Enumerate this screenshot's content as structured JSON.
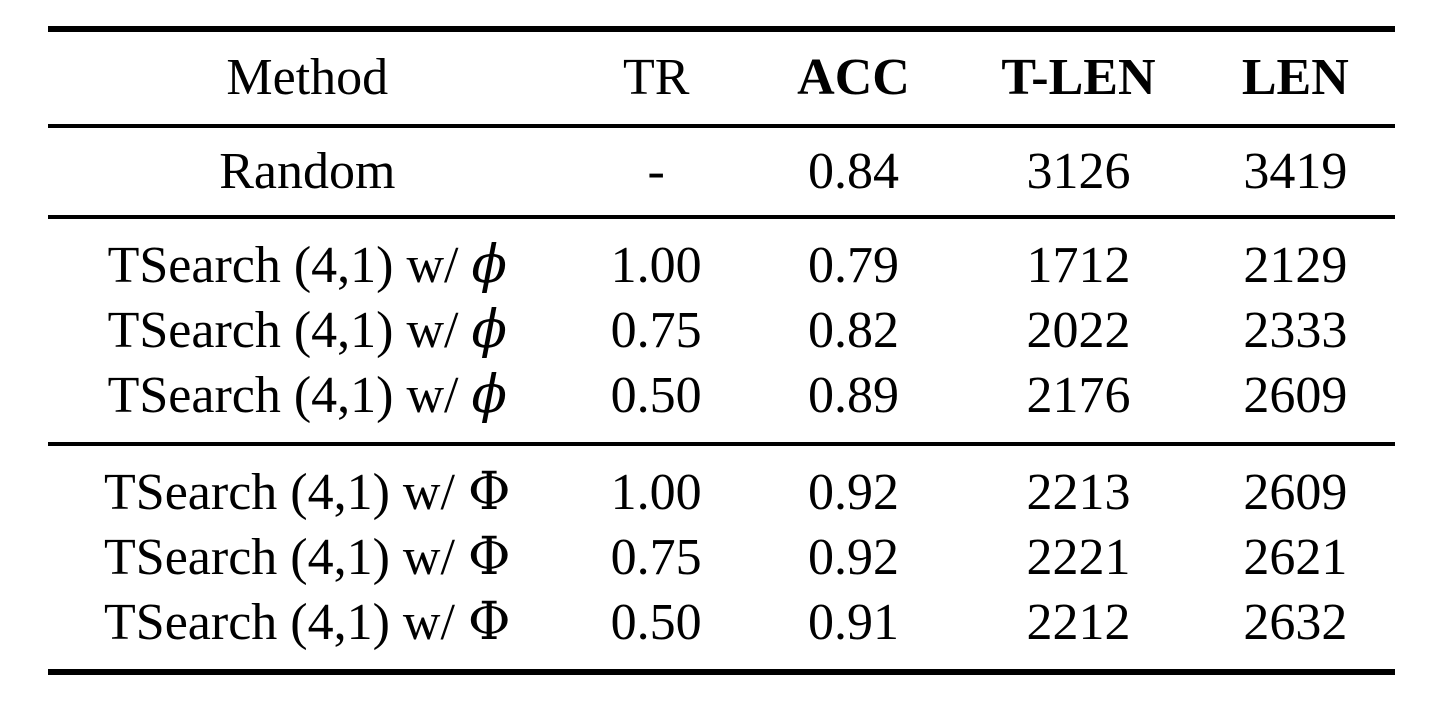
{
  "page": {
    "background_color": "#ffffff",
    "text_color": "#000000"
  },
  "table": {
    "columns": [
      {
        "key": "method",
        "label": "Method",
        "bold": false
      },
      {
        "key": "tr",
        "label": "TR",
        "bold": false
      },
      {
        "key": "acc",
        "label": "ACC",
        "bold": true
      },
      {
        "key": "t_len",
        "label": "T-LEN",
        "bold": true
      },
      {
        "key": "len",
        "label": "LEN",
        "bold": true
      }
    ],
    "groups": [
      {
        "name": "baseline",
        "rows": [
          {
            "method_prefix": "Random",
            "method_symbol": "",
            "tr": "-",
            "acc": "0.84",
            "t_len": "3126",
            "len": "3419"
          }
        ]
      },
      {
        "name": "tsearch-lowercase-phi",
        "rows": [
          {
            "method_prefix": "TSearch (4,1) w/",
            "method_symbol": "ϕ",
            "tr": "1.00",
            "acc": "0.79",
            "t_len": "1712",
            "len": "2129"
          },
          {
            "method_prefix": "TSearch (4,1) w/",
            "method_symbol": "ϕ",
            "tr": "0.75",
            "acc": "0.82",
            "t_len": "2022",
            "len": "2333"
          },
          {
            "method_prefix": "TSearch (4,1) w/",
            "method_symbol": "ϕ",
            "tr": "0.50",
            "acc": "0.89",
            "t_len": "2176",
            "len": "2609"
          }
        ]
      },
      {
        "name": "tsearch-uppercase-phi",
        "rows": [
          {
            "method_prefix": "TSearch (4,1) w/",
            "method_symbol": "Φ",
            "tr": "1.00",
            "acc": "0.92",
            "t_len": "2213",
            "len": "2609"
          },
          {
            "method_prefix": "TSearch (4,1) w/",
            "method_symbol": "Φ",
            "tr": "0.75",
            "acc": "0.92",
            "t_len": "2221",
            "len": "2621"
          },
          {
            "method_prefix": "TSearch (4,1) w/",
            "method_symbol": "Φ",
            "tr": "0.50",
            "acc": "0.91",
            "t_len": "2212",
            "len": "2632"
          }
        ]
      }
    ]
  }
}
